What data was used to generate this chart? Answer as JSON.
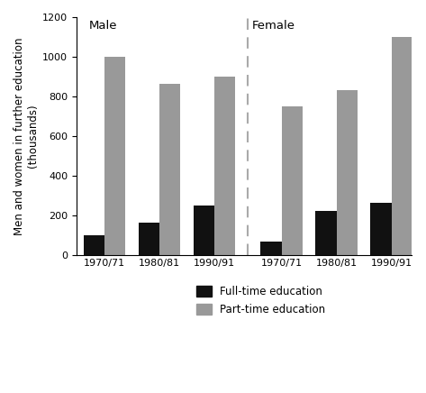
{
  "title": "",
  "ylabel": "Men and women in further education\n(thousands)",
  "ylim": [
    0,
    1200
  ],
  "yticks": [
    0,
    200,
    400,
    600,
    800,
    1000,
    1200
  ],
  "male_label": "Male",
  "female_label": "Female",
  "categories": [
    "1970/71",
    "1980/81",
    "1990/91"
  ],
  "male_fulltime": [
    100,
    160,
    250
  ],
  "male_parttime": [
    1000,
    865,
    900
  ],
  "female_fulltime": [
    65,
    220,
    260
  ],
  "female_parttime": [
    750,
    830,
    1100
  ],
  "fulltime_color": "#111111",
  "parttime_color": "#999999",
  "background_color": "#ffffff",
  "bar_width": 0.42,
  "legend_fulltime": "Full-time education",
  "legend_parttime": "Part-time education",
  "label_fontsize": 8.5,
  "tick_fontsize": 8,
  "section_fontsize": 9.5
}
